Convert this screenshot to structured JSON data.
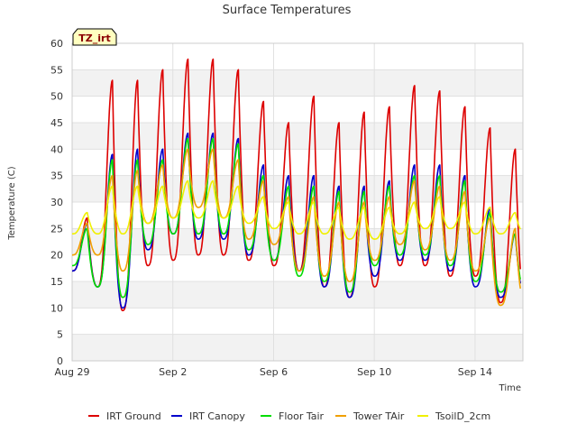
{
  "chart_data": {
    "type": "line",
    "title": "Surface Temperatures",
    "xlabel": "Time",
    "ylabel": "Temperature (C)",
    "badge": "TZ_irt",
    "x_range_days": [
      0,
      17.9
    ],
    "ylim": [
      0,
      60
    ],
    "y_ticks": [
      0,
      5,
      10,
      15,
      20,
      25,
      30,
      35,
      40,
      45,
      50,
      55,
      60
    ],
    "x_ticks": [
      {
        "value": 0,
        "label": "Aug 29"
      },
      {
        "value": 4,
        "label": "Sep 2"
      },
      {
        "value": 8,
        "label": "Sep 6"
      },
      {
        "value": 12,
        "label": "Sep 10"
      },
      {
        "value": 16,
        "label": "Sep 14"
      }
    ],
    "grid": true,
    "legend_position": "bottom",
    "daily_peaks": [
      "Aug 29",
      "Aug 30",
      "Aug 31",
      "Sep 1",
      "Sep 2",
      "Sep 3",
      "Sep 4",
      "Sep 5",
      "Sep 6",
      "Sep 7",
      "Sep 8",
      "Sep 9",
      "Sep 10",
      "Sep 11",
      "Sep 12",
      "Sep 13",
      "Sep 14",
      "Sep 15"
    ],
    "series": [
      {
        "name": "IRT Ground",
        "color": "#dd0000",
        "daily_max": [
          27,
          53,
          53,
          55,
          57,
          57,
          55,
          49,
          45,
          50,
          45,
          47,
          48,
          52,
          51,
          48,
          44,
          40
        ],
        "daily_min": [
          17,
          14,
          9.5,
          18,
          19,
          20,
          20,
          19,
          18,
          17,
          14,
          12,
          14,
          18,
          18,
          16,
          16,
          11
        ]
      },
      {
        "name": "IRT Canopy",
        "color": "#0000cc",
        "daily_max": [
          26,
          39,
          40,
          40,
          43,
          43,
          42,
          37,
          35,
          35,
          33,
          33,
          34,
          37,
          37,
          35,
          29,
          24
        ],
        "daily_min": [
          17,
          14,
          10,
          21,
          24,
          23,
          23,
          20,
          19,
          17,
          14,
          12,
          16,
          19,
          19,
          17,
          14,
          12
        ]
      },
      {
        "name": "Floor Tair",
        "color": "#00dd00",
        "daily_max": [
          25,
          38,
          38,
          38,
          42,
          42,
          41,
          35,
          33,
          33,
          32,
          32,
          33,
          35,
          35,
          34,
          28,
          24
        ],
        "daily_min": [
          18,
          14,
          12,
          22,
          24,
          24,
          24,
          21,
          19,
          16,
          15,
          13,
          18,
          20,
          20,
          18,
          15,
          13
        ]
      },
      {
        "name": "Tower TAir",
        "color": "#f0a000",
        "daily_max": [
          26,
          35,
          36,
          37,
          40,
          40,
          38,
          34,
          31,
          31,
          30,
          30,
          31,
          34,
          33,
          32,
          27,
          25
        ],
        "daily_min": [
          20,
          20,
          17,
          26,
          27,
          29,
          27,
          23,
          22,
          17,
          16,
          15,
          19,
          22,
          21,
          19,
          17,
          10.5
        ]
      },
      {
        "name": "TsoilD_2cm",
        "color": "#f0f000",
        "daily_max": [
          28,
          33,
          33,
          33,
          34,
          34,
          33,
          31,
          30,
          30,
          29,
          29,
          29,
          30,
          31,
          30,
          29,
          28
        ],
        "daily_min": [
          24,
          24,
          24,
          26,
          27,
          27,
          27,
          26,
          25,
          24,
          24,
          23,
          23,
          24,
          25,
          25,
          24,
          24
        ]
      }
    ]
  }
}
